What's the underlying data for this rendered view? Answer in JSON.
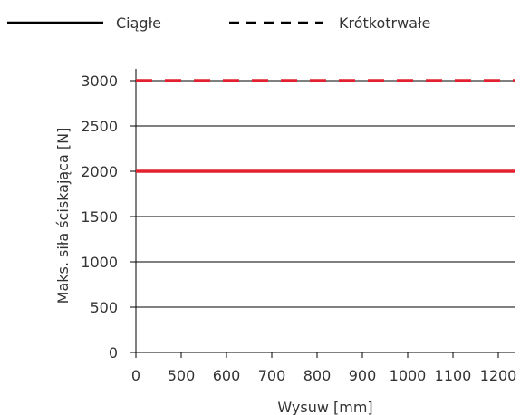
{
  "chart_data": {
    "type": "line",
    "xlabel": "Wysuw [mm]",
    "ylabel": "Maks. siła ściskająca [N]",
    "x_ticks": [
      "0",
      "500",
      "600",
      "700",
      "800",
      "900",
      "1000",
      "1100",
      "1200"
    ],
    "ylim": [
      0,
      3000
    ],
    "y_ticks": [
      0,
      500,
      1000,
      1500,
      2000,
      2500,
      3000
    ],
    "grid": "horizontal",
    "legend_position": "top",
    "series": [
      {
        "name": "Ciągłe",
        "style": "solid",
        "x": [
          0,
          1200
        ],
        "y": [
          2000,
          2000
        ]
      },
      {
        "name": "Krótkotrwałe",
        "style": "dashed",
        "x": [
          0,
          1200
        ],
        "y": [
          3000,
          3000
        ]
      }
    ],
    "colors": {
      "series": "#e3202f",
      "axis": "#000000",
      "legend": "#000000",
      "grid": "#000000"
    }
  }
}
